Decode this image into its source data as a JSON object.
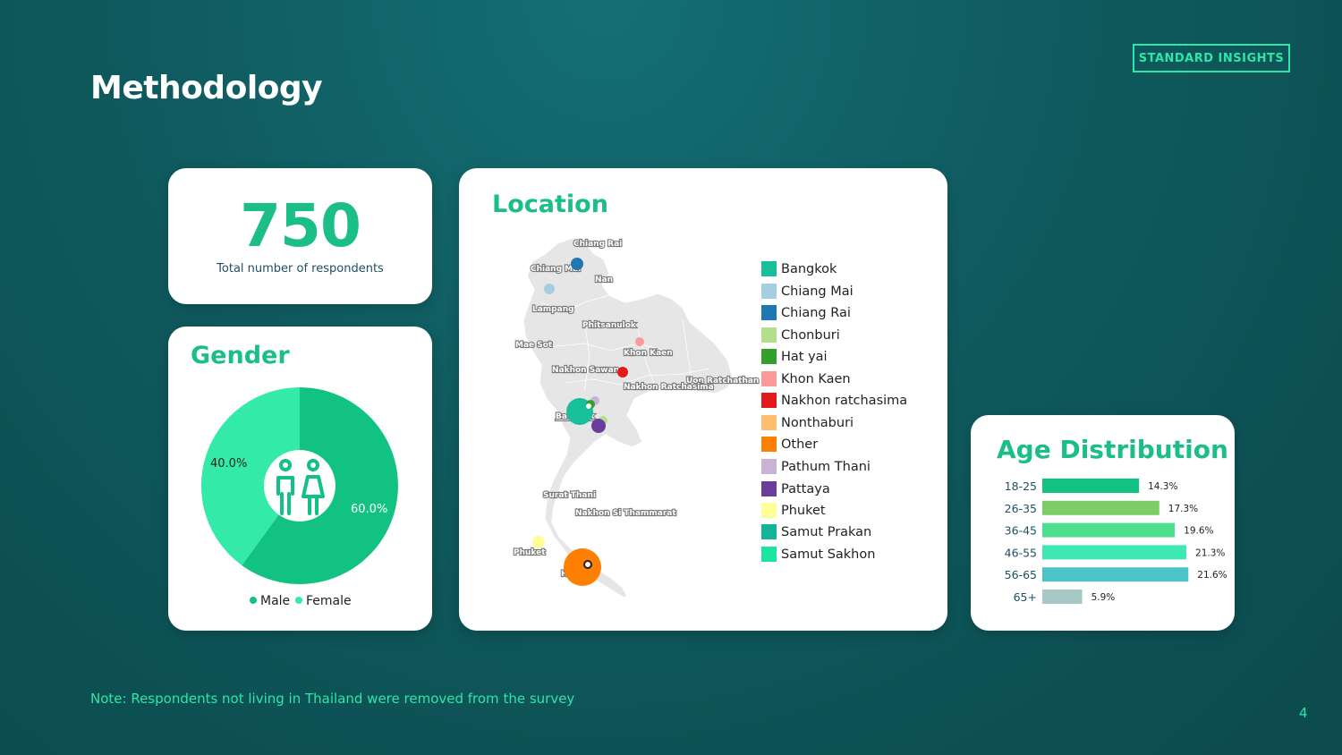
{
  "header": {
    "title": "Methodology",
    "brand": "STANDARD INSIGHTS"
  },
  "total": {
    "number": "750",
    "caption": "Total number of respondents"
  },
  "gender": {
    "heading": "Gender",
    "icon": "male-female-icon",
    "slices": [
      {
        "label": "Male",
        "value": 60.0,
        "display": "60.0%",
        "color": "#12c282"
      },
      {
        "label": "Female",
        "value": 40.0,
        "display": "40.0%",
        "color": "#34eaa9"
      }
    ]
  },
  "location": {
    "heading": "Location",
    "map_labels": [
      "Chiang Rai",
      "Chiang Mai",
      "Nan",
      "Lampang",
      "Phitsanulok",
      "Mae Sot",
      "Khon Kaen",
      "Nakhon Sawan",
      "Uon Ratchathan",
      "Nakhon Ratchasima",
      "Bangkok",
      "Surat Thani",
      "Nakhon Si Thammarat",
      "Phuket",
      "Hat Yai"
    ],
    "legend": [
      {
        "label": "Bangkok",
        "color": "#17c09a"
      },
      {
        "label": "Chiang Mai",
        "color": "#a6cee3"
      },
      {
        "label": "Chiang Rai",
        "color": "#1f78b4"
      },
      {
        "label": "Chonburi",
        "color": "#b2df8a"
      },
      {
        "label": "Hat yai",
        "color": "#33a02c"
      },
      {
        "label": "Khon Kaen",
        "color": "#fb9a99"
      },
      {
        "label": "Nakhon ratchasima",
        "color": "#e31a1c"
      },
      {
        "label": "Nonthaburi",
        "color": "#fdbf6f"
      },
      {
        "label": "Other",
        "color": "#ff7f00"
      },
      {
        "label": "Pathum Thani",
        "color": "#cab2d6"
      },
      {
        "label": "Pattaya",
        "color": "#6a3d9a"
      },
      {
        "label": "Phuket",
        "color": "#ffff99"
      },
      {
        "label": "Samut Prakan",
        "color": "#13b59a"
      },
      {
        "label": "Samut Sakhon",
        "color": "#1de3a0"
      }
    ]
  },
  "chart_data": {
    "type": "bar",
    "title": "Age Distribution",
    "categories": [
      "18-25",
      "26-35",
      "36-45",
      "46-55",
      "56-65",
      "65+"
    ],
    "values": [
      14.3,
      17.3,
      19.6,
      21.3,
      21.6,
      5.9
    ],
    "value_labels": [
      "14.3%",
      "17.3%",
      "19.6%",
      "21.3%",
      "21.6%",
      "5.9%"
    ],
    "colors": [
      "#12c282",
      "#7ccd67",
      "#4ddf8f",
      "#3fe8b2",
      "#4cc3c6",
      "#a6c8c6"
    ],
    "orientation": "horizontal",
    "grid": false
  },
  "footer": {
    "note": "Note: Respondents not living in Thailand were removed from the survey",
    "page": "4"
  }
}
